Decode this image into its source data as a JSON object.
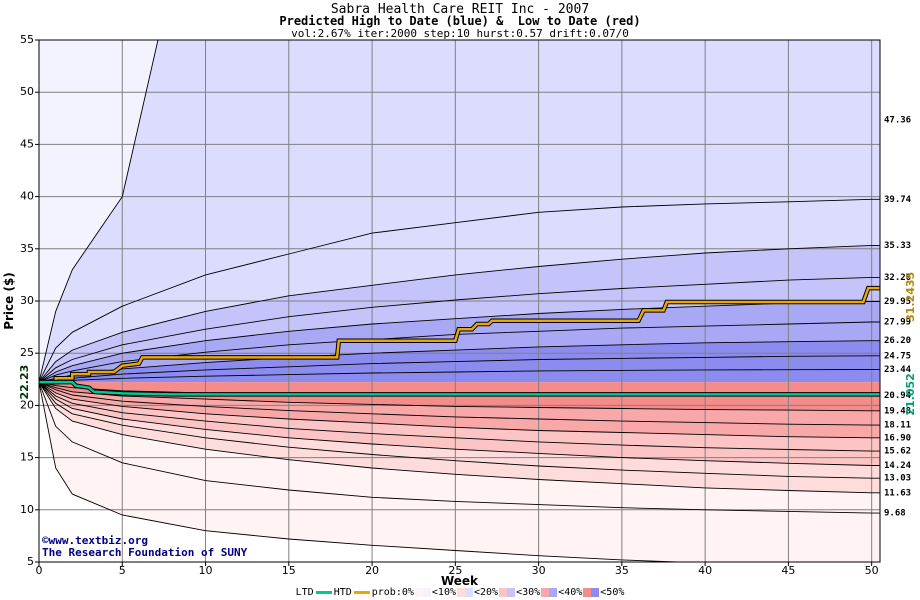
{
  "header": {
    "title": "Sabra Health Care REIT Inc - 2007",
    "subtitle": "Predicted High to Date (blue) &  Low to Date (red)",
    "params": "vol:2.67% iter:2000 step:10 hurst:0.57 drift:0.07/0"
  },
  "watermark": {
    "line1": "©www.textbiz.org",
    "line2": "The Research Foundation of SUNY"
  },
  "legend": {
    "ltd": "LTD",
    "htd": "HTD",
    "prob": "prob:0%",
    "b10": "<10%",
    "b20": "<20%",
    "b30": "<30%",
    "b40": "<40%",
    "b50": "<50%"
  },
  "colors": {
    "grid": "#808080",
    "ltd_line": "#00c896",
    "htd_line": "#e8a800",
    "blue_bands": [
      "#f3f3ff",
      "#dcdcff",
      "#c4c4fb",
      "#a8a8f5",
      "#8c8cf0"
    ],
    "red_bands": [
      "#fff3f3",
      "#ffdcdc",
      "#fcc4c4",
      "#f8a8a8",
      "#f48c8c"
    ]
  },
  "chart_data": {
    "type": "area",
    "title": "Sabra Health Care REIT Inc - 2007",
    "xlabel": "Week",
    "ylabel": "Price ($)",
    "xlim": [
      0,
      50.5
    ],
    "ylim": [
      5,
      55
    ],
    "xticks": [
      0,
      5,
      10,
      15,
      20,
      25,
      30,
      35,
      40,
      45,
      50
    ],
    "yticks": [
      5,
      10,
      15,
      20,
      25,
      30,
      35,
      40,
      45,
      50,
      55
    ],
    "grid": true,
    "start_price": 22.23,
    "start_label": "22.23",
    "weeks": [
      0,
      1,
      2,
      5,
      10,
      15,
      20,
      25,
      30,
      35,
      40,
      45,
      50
    ],
    "upper_percentiles": [
      {
        "label": "47.36",
        "final": 47.36,
        "values": [
          22.23,
          29,
          33,
          40,
          null,
          null,
          null,
          null,
          null,
          null,
          null,
          null,
          null
        ]
      },
      {
        "label": "39.74",
        "final": 39.74,
        "values": [
          22.23,
          25.5,
          27,
          29.5,
          32.5,
          34.5,
          36.5,
          37.5,
          38.5,
          39,
          39.3,
          39.5,
          39.74
        ]
      },
      {
        "label": "35.33",
        "final": 35.33,
        "values": [
          22.23,
          24.2,
          25.3,
          27,
          29,
          30.5,
          31.5,
          32.5,
          33.3,
          34,
          34.6,
          35,
          35.33
        ]
      },
      {
        "label": "32.26",
        "final": 32.26,
        "values": [
          22.23,
          23.6,
          24.4,
          25.8,
          27.3,
          28.5,
          29.4,
          30.1,
          30.7,
          31.2,
          31.6,
          32,
          32.26
        ]
      },
      {
        "label": "29.95",
        "final": 29.95,
        "values": [
          22.23,
          23.2,
          23.8,
          25,
          26.2,
          27.1,
          27.8,
          28.3,
          28.8,
          29.2,
          29.5,
          29.8,
          29.95
        ]
      },
      {
        "label": "27.99",
        "final": 27.99,
        "values": [
          22.23,
          22.9,
          23.3,
          24.2,
          25.1,
          25.8,
          26.3,
          26.8,
          27.1,
          27.4,
          27.6,
          27.8,
          27.99
        ]
      },
      {
        "label": "26.20",
        "final": 26.2,
        "values": [
          22.23,
          22.6,
          22.9,
          23.5,
          24.1,
          24.6,
          25,
          25.3,
          25.6,
          25.8,
          26,
          26.1,
          26.2
        ]
      },
      {
        "label": "24.75",
        "final": 24.75,
        "values": [
          22.23,
          22.45,
          22.6,
          23,
          23.4,
          23.7,
          24,
          24.2,
          24.4,
          24.5,
          24.6,
          24.7,
          24.75
        ]
      },
      {
        "label": "23.44",
        "final": 23.44,
        "values": [
          22.23,
          22.3,
          22.4,
          22.6,
          22.8,
          22.95,
          23.1,
          23.2,
          23.3,
          23.35,
          23.4,
          23.42,
          23.44
        ]
      }
    ],
    "lower_percentiles": [
      {
        "label": "20.94",
        "final": 20.94,
        "values": [
          22.23,
          21.9,
          21.7,
          21.4,
          21.2,
          21.1,
          21.05,
          21,
          20.98,
          20.96,
          20.95,
          20.95,
          20.94
        ]
      },
      {
        "label": "19.48",
        "final": 19.48,
        "values": [
          22.23,
          21.7,
          21.3,
          20.9,
          20.6,
          20.3,
          20.1,
          19.9,
          19.8,
          19.7,
          19.6,
          19.55,
          19.48
        ]
      },
      {
        "label": "18.11",
        "final": 18.11,
        "values": [
          22.23,
          21.5,
          21,
          20.4,
          19.9,
          19.5,
          19.2,
          18.9,
          18.7,
          18.5,
          18.35,
          18.2,
          18.11
        ]
      },
      {
        "label": "16.90",
        "final": 16.9,
        "values": [
          22.23,
          21.2,
          20.6,
          19.9,
          19.2,
          18.7,
          18.3,
          17.9,
          17.6,
          17.4,
          17.2,
          17,
          16.9
        ]
      },
      {
        "label": "15.62",
        "final": 15.62,
        "values": [
          22.23,
          20.9,
          20.2,
          19.3,
          18.5,
          17.8,
          17.3,
          16.9,
          16.5,
          16.2,
          15.95,
          15.78,
          15.62
        ]
      },
      {
        "label": "14.24",
        "final": 14.24,
        "values": [
          22.23,
          20.6,
          19.7,
          18.7,
          17.7,
          16.9,
          16.3,
          15.8,
          15.4,
          15,
          14.7,
          14.45,
          14.24
        ]
      },
      {
        "label": "13.03",
        "final": 13.03,
        "values": [
          22.23,
          20.2,
          19.2,
          18.1,
          16.9,
          16,
          15.3,
          14.7,
          14.2,
          13.8,
          13.5,
          13.2,
          13.03
        ]
      },
      {
        "label": "11.63",
        "final": 11.63,
        "values": [
          22.23,
          19.7,
          18.5,
          17.2,
          15.8,
          14.8,
          14,
          13.4,
          12.9,
          12.5,
          12.1,
          11.85,
          11.63
        ]
      },
      {
        "label": "9.68",
        "final": 9.68,
        "values": [
          22.23,
          18,
          16.5,
          14.5,
          12.8,
          11.9,
          11.2,
          10.8,
          10.5,
          10.2,
          10,
          9.85,
          9.68
        ]
      },
      {
        "label": "",
        "final": 4.5,
        "values": [
          22.23,
          14,
          11.5,
          9.5,
          8,
          7.2,
          6.6,
          6.1,
          5.6,
          5.2,
          4.9,
          4.7,
          4.5
        ]
      }
    ],
    "htd_series": {
      "name": "HTD",
      "final_label": "31.2435",
      "points": [
        [
          0,
          22.23
        ],
        [
          1,
          22.23
        ],
        [
          1,
          22.6
        ],
        [
          2,
          22.6
        ],
        [
          2,
          23
        ],
        [
          3,
          23
        ],
        [
          3,
          23.2
        ],
        [
          4.5,
          23.2
        ],
        [
          5,
          23.8
        ],
        [
          6,
          24
        ],
        [
          6.2,
          24.6
        ],
        [
          12,
          24.6
        ],
        [
          17.9,
          24.6
        ],
        [
          18,
          26.2
        ],
        [
          25,
          26.2
        ],
        [
          25.2,
          27.3
        ],
        [
          26,
          27.3
        ],
        [
          26.3,
          27.8
        ],
        [
          27,
          27.8
        ],
        [
          27.2,
          28.1
        ],
        [
          36,
          28.1
        ],
        [
          36.3,
          29.1
        ],
        [
          37.5,
          29.1
        ],
        [
          37.7,
          29.9
        ],
        [
          49.5,
          29.9
        ],
        [
          49.8,
          31.24
        ],
        [
          50.5,
          31.24
        ]
      ]
    },
    "ltd_series": {
      "name": "LTD",
      "final_label": "21.052",
      "points": [
        [
          0,
          22.23
        ],
        [
          2,
          22.23
        ],
        [
          2.2,
          21.9
        ],
        [
          3,
          21.7
        ],
        [
          3.3,
          21.3
        ],
        [
          5,
          21.15
        ],
        [
          8,
          21.05
        ],
        [
          20,
          21.05
        ],
        [
          50.5,
          21.05
        ]
      ]
    }
  }
}
